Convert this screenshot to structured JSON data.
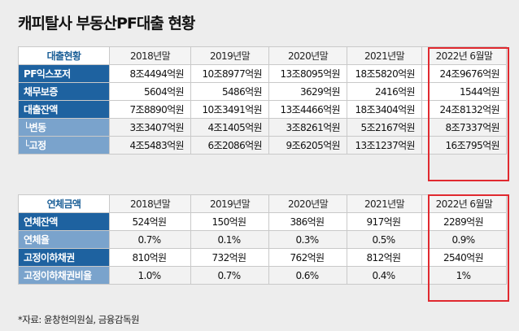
{
  "title": "캐피탈사 부동산PF대출 현황",
  "table1": {
    "corner": "대출현황",
    "columns": [
      "2018년말",
      "2019년말",
      "2020년말",
      "2021년말",
      "2022년 6월말"
    ],
    "rows": [
      {
        "label": "PF익스포저",
        "values": [
          "8조4494억원",
          "10조8977억원",
          "13조8095억원",
          "18조5820억원",
          "24조9676억원"
        ]
      },
      {
        "label": "채무보증",
        "values": [
          "5604억원",
          "5486억원",
          "3629억원",
          "2416억원",
          "1544억원"
        ]
      },
      {
        "label": "대출잔액",
        "values": [
          "7조8890억원",
          "10조3491억원",
          "13조4466억원",
          "18조3404억원",
          "24조8132억원"
        ]
      },
      {
        "label": "└변동",
        "values": [
          "3조3407억원",
          "4조1405억원",
          "3조8261억원",
          "5조2167억원",
          "8조7337억원"
        ]
      },
      {
        "label": "└고정",
        "values": [
          "4조5483억원",
          "6조2086억원",
          "9조6205억원",
          "13조1237억원",
          "16조795억원"
        ]
      }
    ]
  },
  "table2": {
    "corner": "연체금액",
    "columns": [
      "2018년말",
      "2019년말",
      "2020년말",
      "2021년말",
      "2022년 6월말"
    ],
    "rows": [
      {
        "label": "연체잔액",
        "values": [
          "524억원",
          "150억원",
          "386억원",
          "917억원",
          "2289억원"
        ]
      },
      {
        "label": "연체율",
        "values": [
          "0.7%",
          "0.1%",
          "0.3%",
          "0.5%",
          "0.9%"
        ]
      },
      {
        "label": "고정이하채권",
        "values": [
          "810억원",
          "732억원",
          "762억원",
          "812억원",
          "2540억원"
        ]
      },
      {
        "label": "고정이하채권비율",
        "values": [
          "1.0%",
          "0.7%",
          "0.6%",
          "0.4%",
          "1%"
        ]
      }
    ]
  },
  "source": "*자료: 윤창현의원실, 금융감독원",
  "colors": {
    "header_dark": "#1e62a0",
    "header_light": "#7aa3cc",
    "highlight": "#e0292f"
  }
}
